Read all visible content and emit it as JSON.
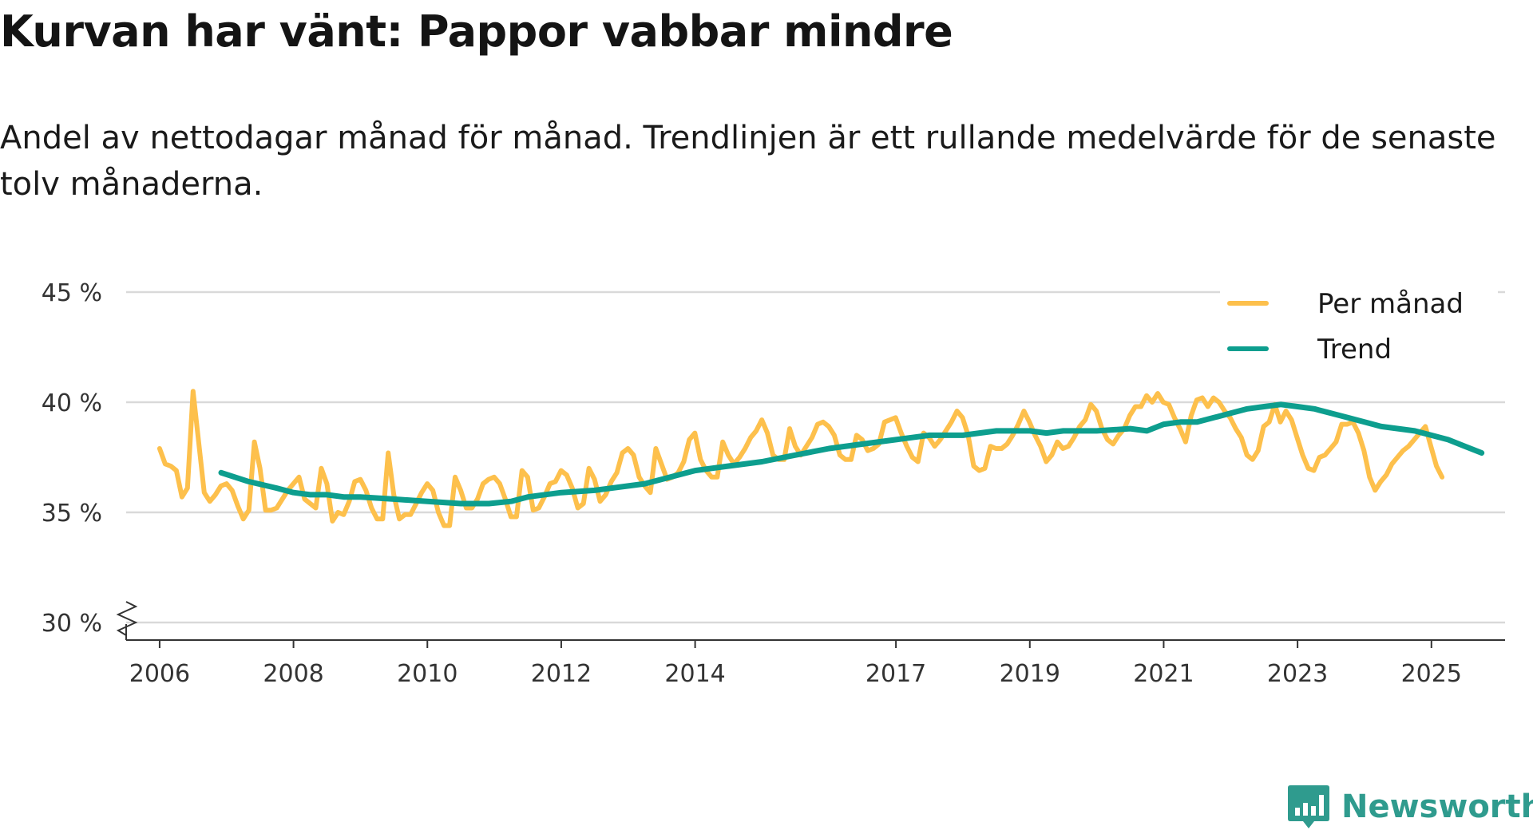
{
  "header": {
    "title": "Kurvan har vänt: Pappor vabbar mindre",
    "subtitle": "Andel av nettodagar månad för månad. Trendlinjen är ett rullande medelvärde för de senaste tolv månaderna."
  },
  "brand": {
    "name": "Newsworthy",
    "icon": "newsworthy-logo-icon"
  },
  "colors": {
    "monthly": "#fdc04c",
    "trend": "#0d9e8e",
    "grid": "#d9d9d9",
    "axis": "#333333",
    "brand": "#2f9b8e"
  },
  "chart_data": {
    "type": "line",
    "title": "Kurvan har vänt: Pappor vabbar mindre",
    "ylim": [
      30,
      45
    ],
    "xlim": [
      2005.5,
      2026.1
    ],
    "y_ticks": [
      {
        "value": 30,
        "label": "30 %"
      },
      {
        "value": 35,
        "label": "35 %"
      },
      {
        "value": 40,
        "label": "40 %"
      },
      {
        "value": 45,
        "label": "45 %"
      }
    ],
    "x_ticks": [
      {
        "value": 2006,
        "label": "2006"
      },
      {
        "value": 2008,
        "label": "2008"
      },
      {
        "value": 2010,
        "label": "2010"
      },
      {
        "value": 2012,
        "label": "2012"
      },
      {
        "value": 2014,
        "label": "2014"
      },
      {
        "value": 2017,
        "label": "2017"
      },
      {
        "value": 2019,
        "label": "2019"
      },
      {
        "value": 2021,
        "label": "2021"
      },
      {
        "value": 2023,
        "label": "2023"
      },
      {
        "value": 2025,
        "label": "2025"
      }
    ],
    "y_axis_break": true,
    "legend_position": "top-right",
    "series": [
      {
        "name": "Per månad",
        "start": 2006.0,
        "step": 0.0833,
        "values": [
          37.9,
          37.2,
          37.1,
          36.9,
          35.7,
          36.1,
          40.5,
          38.2,
          35.9,
          35.5,
          35.8,
          36.2,
          36.3,
          36.0,
          35.3,
          34.7,
          35.1,
          38.2,
          37.0,
          35.1,
          35.1,
          35.2,
          35.6,
          36.0,
          36.3,
          36.6,
          35.6,
          35.4,
          35.2,
          37.0,
          36.3,
          34.6,
          35.0,
          34.9,
          35.5,
          36.4,
          36.5,
          36.0,
          35.2,
          34.7,
          34.7,
          37.7,
          35.8,
          34.7,
          34.9,
          34.9,
          35.4,
          35.9,
          36.3,
          36.0,
          35.0,
          34.4,
          34.4,
          36.6,
          36.0,
          35.2,
          35.2,
          35.6,
          36.3,
          36.5,
          36.6,
          36.3,
          35.6,
          34.8,
          34.8,
          36.9,
          36.6,
          35.1,
          35.2,
          35.7,
          36.3,
          36.4,
          36.9,
          36.7,
          36.1,
          35.2,
          35.4,
          37.0,
          36.5,
          35.5,
          35.8,
          36.4,
          36.8,
          37.7,
          37.9,
          37.6,
          36.6,
          36.2,
          35.9,
          37.9,
          37.2,
          36.5,
          36.6,
          36.8,
          37.3,
          38.3,
          38.6,
          37.4,
          36.9,
          36.6,
          36.6,
          38.2,
          37.6,
          37.2,
          37.5,
          37.9,
          38.4,
          38.7,
          39.2,
          38.6,
          37.6,
          37.4,
          37.4,
          38.8,
          38.0,
          37.6,
          38.0,
          38.4,
          39.0,
          39.1,
          38.9,
          38.5,
          37.6,
          37.4,
          37.4,
          38.5,
          38.3,
          37.8,
          37.9,
          38.1,
          39.1,
          39.2,
          39.3,
          38.6,
          38.0,
          37.5,
          37.3,
          38.6,
          38.4,
          38.0,
          38.3,
          38.7,
          39.1,
          39.6,
          39.3,
          38.5,
          37.1,
          36.9,
          37.0,
          38.0,
          37.9,
          37.9,
          38.1,
          38.5,
          39.0,
          39.6,
          39.1,
          38.5,
          38.0,
          37.3,
          37.6,
          38.2,
          37.9,
          38.0,
          38.4,
          38.9,
          39.2,
          39.9,
          39.6,
          38.8,
          38.3,
          38.1,
          38.5,
          38.8,
          39.4,
          39.8,
          39.8,
          40.3,
          40.0,
          40.4,
          40.0,
          39.9,
          39.3,
          38.8,
          38.2,
          39.4,
          40.1,
          40.2,
          39.8,
          40.2,
          40.0,
          39.6,
          39.3,
          38.8,
          38.4,
          37.6,
          37.4,
          37.8,
          38.9,
          39.1,
          39.9,
          39.1,
          39.6,
          39.2,
          38.4,
          37.6,
          37.0,
          36.9,
          37.5,
          37.6,
          37.9,
          38.2,
          39.0,
          39.0,
          39.1,
          38.6,
          37.8,
          36.6,
          36.0,
          36.4,
          36.7,
          37.2,
          37.5,
          37.8,
          38.0,
          38.3,
          38.6,
          38.9,
          38.0,
          37.1,
          36.6
        ]
      },
      {
        "name": "Trend",
        "points": [
          [
            2006.92,
            36.8
          ],
          [
            2007.33,
            36.4
          ],
          [
            2007.75,
            36.1
          ],
          [
            2008.0,
            35.9
          ],
          [
            2008.25,
            35.8
          ],
          [
            2008.5,
            35.8
          ],
          [
            2008.75,
            35.7
          ],
          [
            2009.0,
            35.7
          ],
          [
            2009.5,
            35.6
          ],
          [
            2010.0,
            35.5
          ],
          [
            2010.5,
            35.4
          ],
          [
            2010.92,
            35.4
          ],
          [
            2011.25,
            35.5
          ],
          [
            2011.5,
            35.7
          ],
          [
            2012.0,
            35.9
          ],
          [
            2012.5,
            36.0
          ],
          [
            2013.0,
            36.2
          ],
          [
            2013.25,
            36.3
          ],
          [
            2013.5,
            36.5
          ],
          [
            2013.75,
            36.7
          ],
          [
            2014.0,
            36.9
          ],
          [
            2014.5,
            37.1
          ],
          [
            2015.0,
            37.3
          ],
          [
            2015.5,
            37.6
          ],
          [
            2016.0,
            37.9
          ],
          [
            2016.5,
            38.1
          ],
          [
            2017.0,
            38.3
          ],
          [
            2017.5,
            38.5
          ],
          [
            2018.0,
            38.5
          ],
          [
            2018.25,
            38.6
          ],
          [
            2018.5,
            38.7
          ],
          [
            2019.0,
            38.7
          ],
          [
            2019.25,
            38.6
          ],
          [
            2019.5,
            38.7
          ],
          [
            2020.0,
            38.7
          ],
          [
            2020.5,
            38.8
          ],
          [
            2020.75,
            38.7
          ],
          [
            2021.0,
            39.0
          ],
          [
            2021.25,
            39.1
          ],
          [
            2021.5,
            39.1
          ],
          [
            2021.75,
            39.3
          ],
          [
            2022.0,
            39.5
          ],
          [
            2022.25,
            39.7
          ],
          [
            2022.5,
            39.8
          ],
          [
            2022.75,
            39.9
          ],
          [
            2023.0,
            39.8
          ],
          [
            2023.25,
            39.7
          ],
          [
            2023.5,
            39.5
          ],
          [
            2023.75,
            39.3
          ],
          [
            2024.0,
            39.1
          ],
          [
            2024.25,
            38.9
          ],
          [
            2024.5,
            38.8
          ],
          [
            2024.75,
            38.7
          ],
          [
            2025.0,
            38.5
          ],
          [
            2025.25,
            38.3
          ],
          [
            2025.5,
            38.0
          ],
          [
            2025.75,
            37.7
          ]
        ]
      }
    ]
  }
}
